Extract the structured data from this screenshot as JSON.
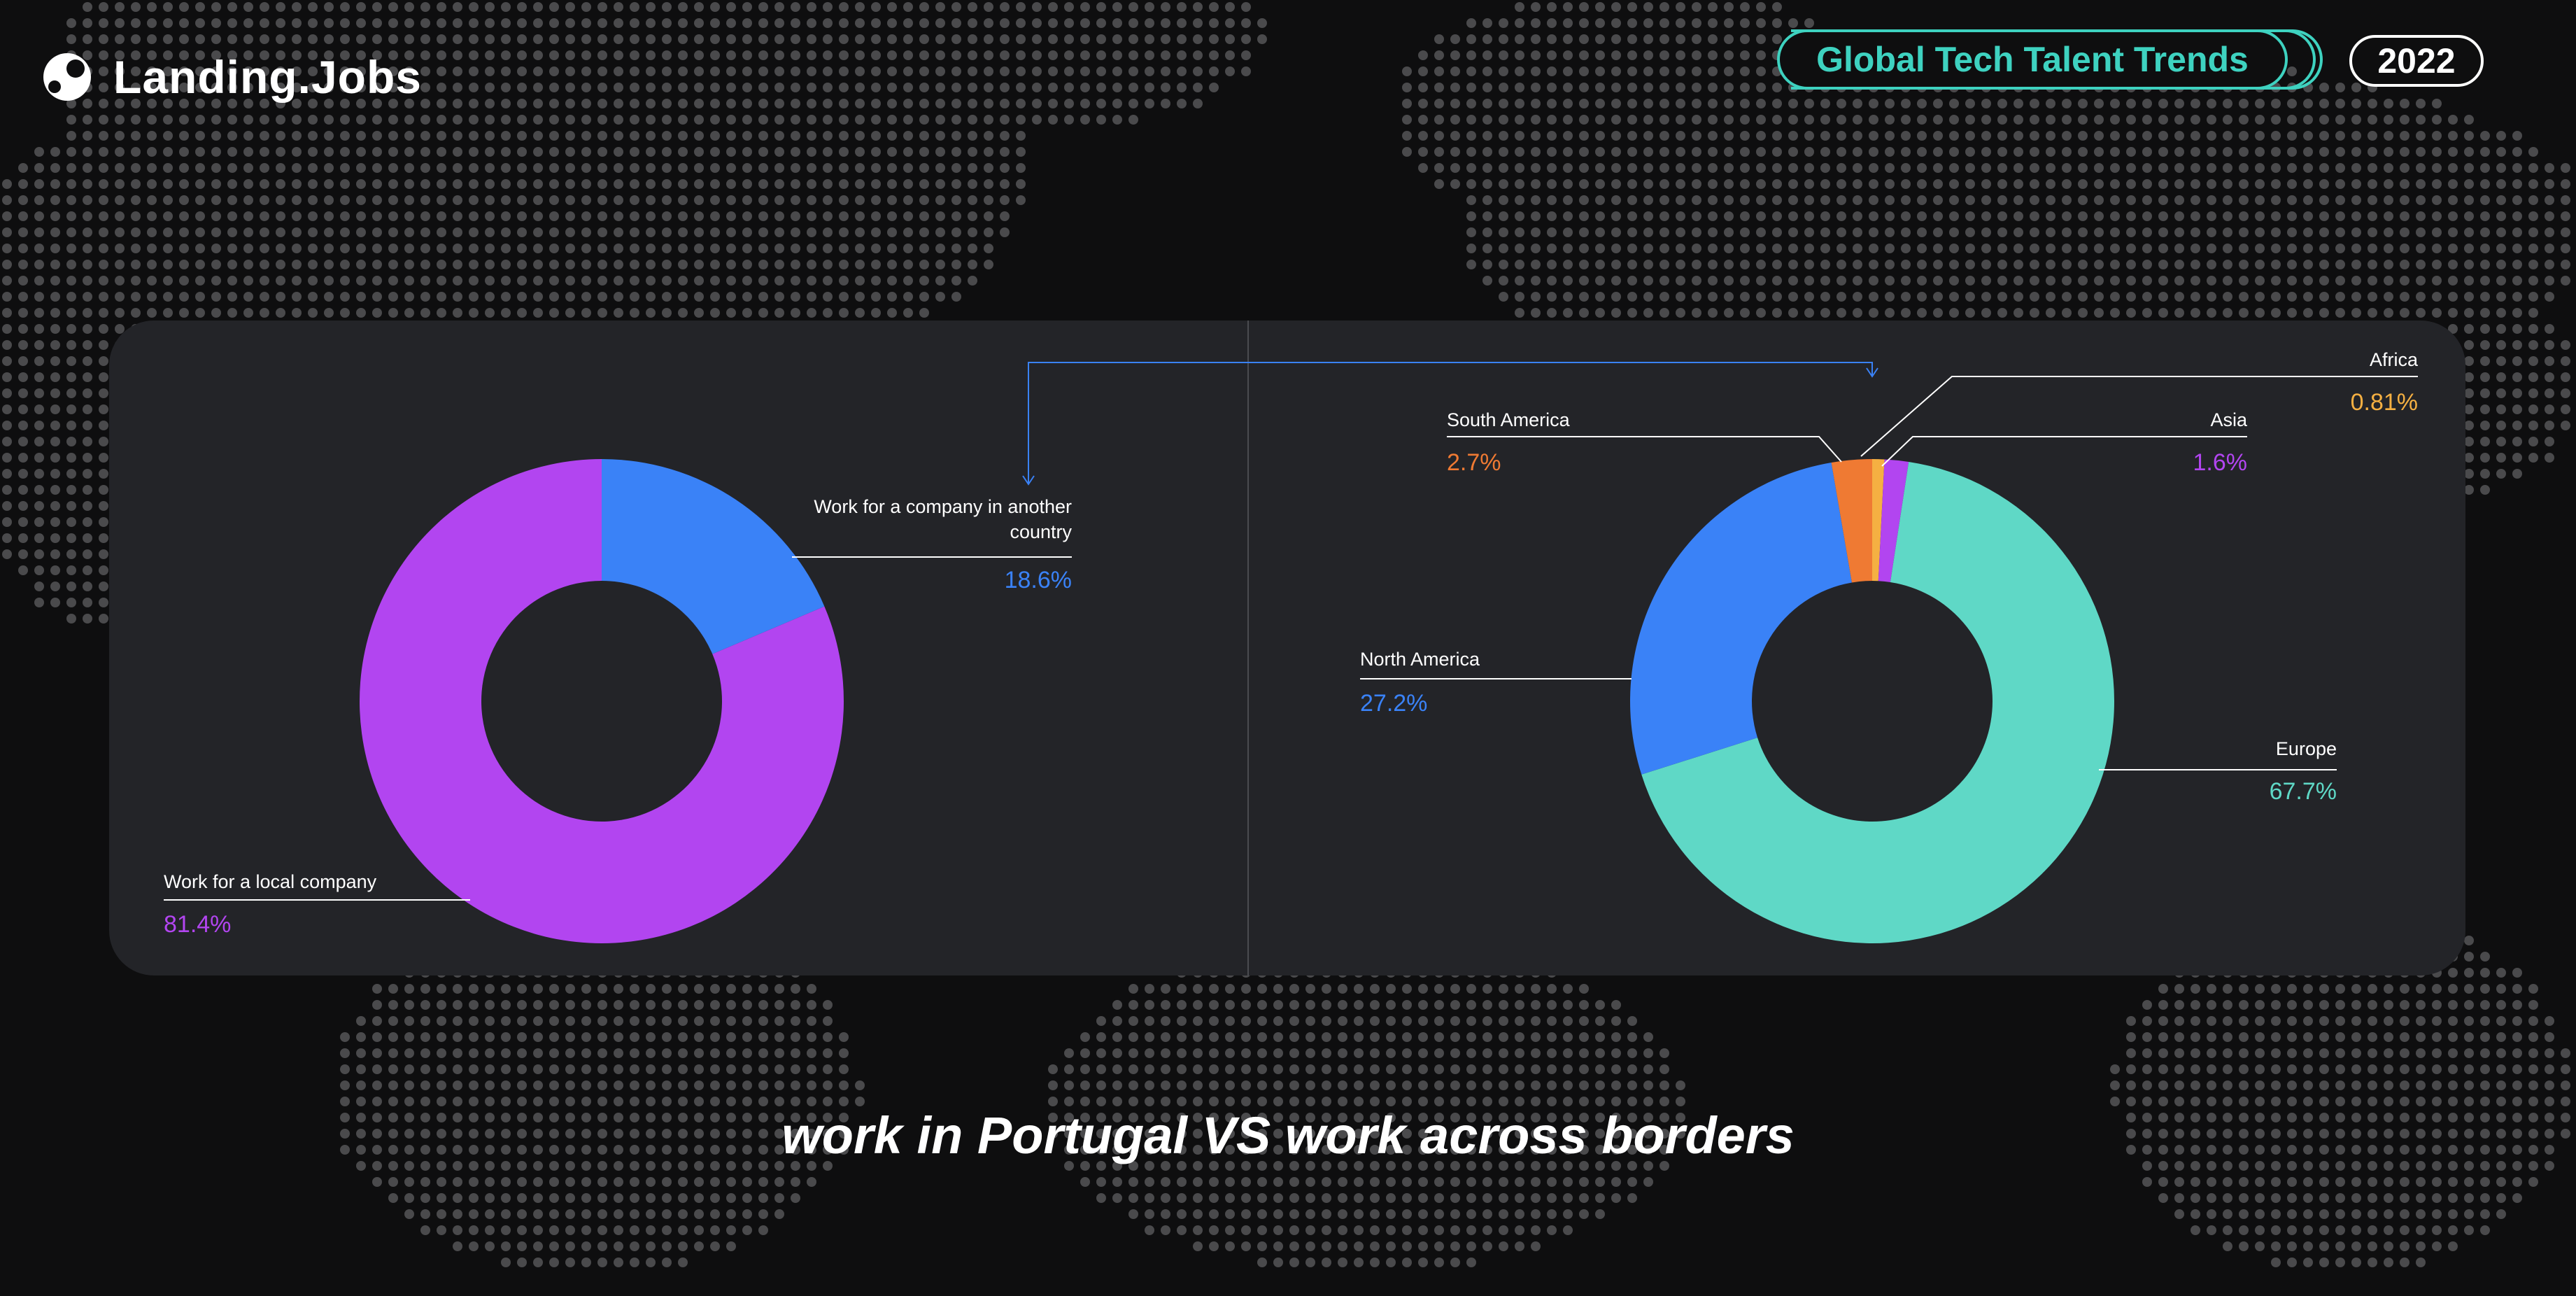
{
  "header": {
    "logo_text": "Landing.Jobs",
    "trend_label": "Global Tech Talent Trends",
    "year": "2022"
  },
  "colors": {
    "background": "#0e0e0f",
    "panel": "#232428",
    "dots": "#4a4a4c",
    "accent_teal": "#3ed2c0",
    "purple": "#b245f0",
    "blue": "#3a82f7",
    "orange": "#ef7a33",
    "yellow": "#f5b042",
    "teal": "#5fd8c6"
  },
  "chart_data": [
    {
      "type": "pie",
      "donut": true,
      "slices": [
        {
          "label": "Work for a company in another country",
          "value": 18.6,
          "value_label": "18.6%",
          "color": "#3a82f7"
        },
        {
          "label": "Work for a local company",
          "value": 81.4,
          "value_label": "81.4%",
          "color": "#b245f0"
        }
      ]
    },
    {
      "type": "pie",
      "donut": true,
      "slices": [
        {
          "label": "Africa",
          "value": 0.81,
          "value_label": "0.81%",
          "color": "#f5b042"
        },
        {
          "label": "Asia",
          "value": 1.6,
          "value_label": "1.6%",
          "color": "#b245f0"
        },
        {
          "label": "Europe",
          "value": 67.7,
          "value_label": "67.7%",
          "color": "#5fd8c6"
        },
        {
          "label": "North America",
          "value": 27.2,
          "value_label": "27.2%",
          "color": "#3a82f7"
        },
        {
          "label": "South America",
          "value": 2.7,
          "value_label": "2.7%",
          "color": "#ef7a33"
        }
      ]
    }
  ],
  "footer": {
    "title": "work in Portugal VS work across borders"
  }
}
